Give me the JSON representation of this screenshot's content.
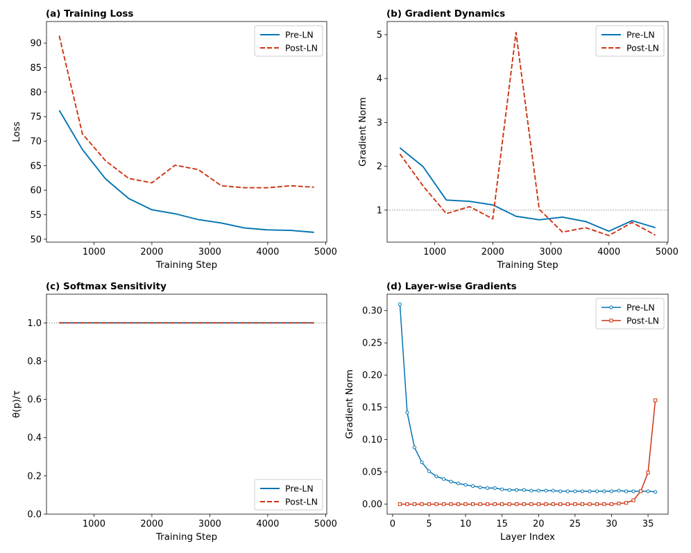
{
  "colors": {
    "pre": "#0072B2",
    "post": "#CC3311",
    "ref": "#888888"
  },
  "chart_data": [
    {
      "id": "a",
      "type": "line",
      "title": "(a) Training Loss",
      "xlabel": "Training Step",
      "ylabel": "Loss",
      "xlim": [
        180,
        5020
      ],
      "ylim": [
        49.4,
        94.4
      ],
      "xticks": [
        1000,
        2000,
        3000,
        4000,
        5000
      ],
      "xtick_labels": [
        "1000",
        "2000",
        "3000",
        "4000",
        "5000"
      ],
      "yticks": [
        50,
        55,
        60,
        65,
        70,
        75,
        80,
        85,
        90
      ],
      "ytick_labels": [
        "50",
        "55",
        "60",
        "65",
        "70",
        "75",
        "80",
        "85",
        "90"
      ],
      "legend_loc": "upper-right",
      "x": [
        400,
        800,
        1200,
        1600,
        2000,
        2400,
        2800,
        3200,
        3600,
        4000,
        4400,
        4800
      ],
      "series": [
        {
          "name": "Pre-LN",
          "style": "solid",
          "marker": "none",
          "values": [
            76.3,
            68.3,
            62.3,
            58.3,
            56.0,
            55.2,
            54.0,
            53.3,
            52.3,
            51.9,
            51.8,
            51.4
          ]
        },
        {
          "name": "Post-LN",
          "style": "dashed",
          "marker": "none",
          "values": [
            91.5,
            71.5,
            66.0,
            62.4,
            61.5,
            65.1,
            64.2,
            60.9,
            60.5,
            60.5,
            60.9,
            60.6
          ]
        }
      ]
    },
    {
      "id": "b",
      "type": "line",
      "title": "(b) Gradient Dynamics",
      "xlabel": "Training Step",
      "ylabel": "Gradient Norm",
      "xlim": [
        180,
        5020
      ],
      "ylim": [
        0.27,
        5.3
      ],
      "xticks": [
        1000,
        2000,
        3000,
        4000,
        5000
      ],
      "xtick_labels": [
        "1000",
        "2000",
        "3000",
        "4000",
        "5000"
      ],
      "yticks": [
        1,
        2,
        3,
        4,
        5
      ],
      "ytick_labels": [
        "1",
        "2",
        "3",
        "4",
        "5"
      ],
      "ref_y": 1.0,
      "legend_loc": "upper-right",
      "x": [
        400,
        800,
        1200,
        1600,
        2000,
        2400,
        2800,
        3200,
        3600,
        4000,
        4400,
        4800
      ],
      "series": [
        {
          "name": "Pre-LN",
          "style": "solid",
          "marker": "none",
          "values": [
            2.42,
            1.99,
            1.23,
            1.2,
            1.12,
            0.86,
            0.78,
            0.84,
            0.74,
            0.52,
            0.76,
            0.6
          ]
        },
        {
          "name": "Post-LN",
          "style": "dashed",
          "marker": "none",
          "values": [
            2.28,
            1.55,
            0.92,
            1.08,
            0.8,
            5.05,
            1.02,
            0.5,
            0.6,
            0.42,
            0.72,
            0.43
          ]
        }
      ]
    },
    {
      "id": "c",
      "type": "line",
      "title": "(c) Softmax Sensitivity",
      "xlabel": "Training Step",
      "ylabel": "θ(p)/τ",
      "xlim": [
        180,
        5020
      ],
      "ylim": [
        0.0,
        1.15
      ],
      "xticks": [
        1000,
        2000,
        3000,
        4000,
        5000
      ],
      "xtick_labels": [
        "1000",
        "2000",
        "3000",
        "4000",
        "5000"
      ],
      "yticks": [
        0.0,
        0.2,
        0.4,
        0.6,
        0.8,
        1.0
      ],
      "ytick_labels": [
        "0.0",
        "0.2",
        "0.4",
        "0.6",
        "0.8",
        "1.0"
      ],
      "ref_y": 1.0,
      "legend_loc": "lower-right",
      "x": [
        400,
        800,
        1200,
        1600,
        2000,
        2400,
        2800,
        3200,
        3600,
        4000,
        4400,
        4800
      ],
      "series": [
        {
          "name": "Pre-LN",
          "style": "solid",
          "marker": "none",
          "values": [
            1,
            1,
            1,
            1,
            1,
            1,
            1,
            1,
            1,
            1,
            1,
            1
          ]
        },
        {
          "name": "Post-LN",
          "style": "dashed",
          "marker": "none",
          "values": [
            1,
            1,
            1,
            1,
            1,
            1,
            1,
            1,
            1,
            1,
            1,
            1
          ]
        }
      ]
    },
    {
      "id": "d",
      "type": "line",
      "title": "(d) Layer-wise Gradients",
      "xlabel": "Layer Index",
      "ylabel": "Gradient Norm",
      "xlim": [
        -0.75,
        37.75
      ],
      "ylim": [
        -0.0155,
        0.3255
      ],
      "xticks": [
        0,
        5,
        10,
        15,
        20,
        25,
        30,
        35
      ],
      "xtick_labels": [
        "0",
        "5",
        "10",
        "15",
        "20",
        "25",
        "30",
        "35"
      ],
      "yticks": [
        0.0,
        0.05,
        0.1,
        0.15,
        0.2,
        0.25,
        0.3
      ],
      "ytick_labels": [
        "0.00",
        "0.05",
        "0.10",
        "0.15",
        "0.20",
        "0.25",
        "0.30"
      ],
      "legend_loc": "upper-right",
      "x": [
        1,
        2,
        3,
        4,
        5,
        6,
        7,
        8,
        9,
        10,
        11,
        12,
        13,
        14,
        15,
        16,
        17,
        18,
        19,
        20,
        21,
        22,
        23,
        24,
        25,
        26,
        27,
        28,
        29,
        30,
        31,
        32,
        33,
        34,
        35,
        36
      ],
      "series": [
        {
          "name": "Pre-LN",
          "style": "solid",
          "marker": "circle",
          "values": [
            0.31,
            0.142,
            0.088,
            0.065,
            0.051,
            0.043,
            0.039,
            0.035,
            0.032,
            0.03,
            0.028,
            0.026,
            0.025,
            0.025,
            0.023,
            0.022,
            0.022,
            0.022,
            0.021,
            0.021,
            0.021,
            0.021,
            0.02,
            0.02,
            0.02,
            0.02,
            0.02,
            0.02,
            0.02,
            0.02,
            0.021,
            0.02,
            0.02,
            0.02,
            0.02,
            0.019
          ]
        },
        {
          "name": "Post-LN",
          "style": "solid",
          "marker": "square",
          "values": [
            0.0,
            0.0,
            0.0,
            0.0,
            0.0,
            0.0,
            0.0,
            0.0,
            0.0,
            0.0,
            0.0,
            0.0,
            0.0,
            0.0,
            0.0,
            0.0,
            0.0,
            0.0,
            0.0,
            0.0,
            0.0,
            0.0,
            0.0,
            0.0,
            0.0,
            0.0,
            0.0,
            0.0,
            0.0,
            0.0,
            0.001,
            0.002,
            0.006,
            0.02,
            0.049,
            0.161
          ]
        }
      ]
    }
  ]
}
